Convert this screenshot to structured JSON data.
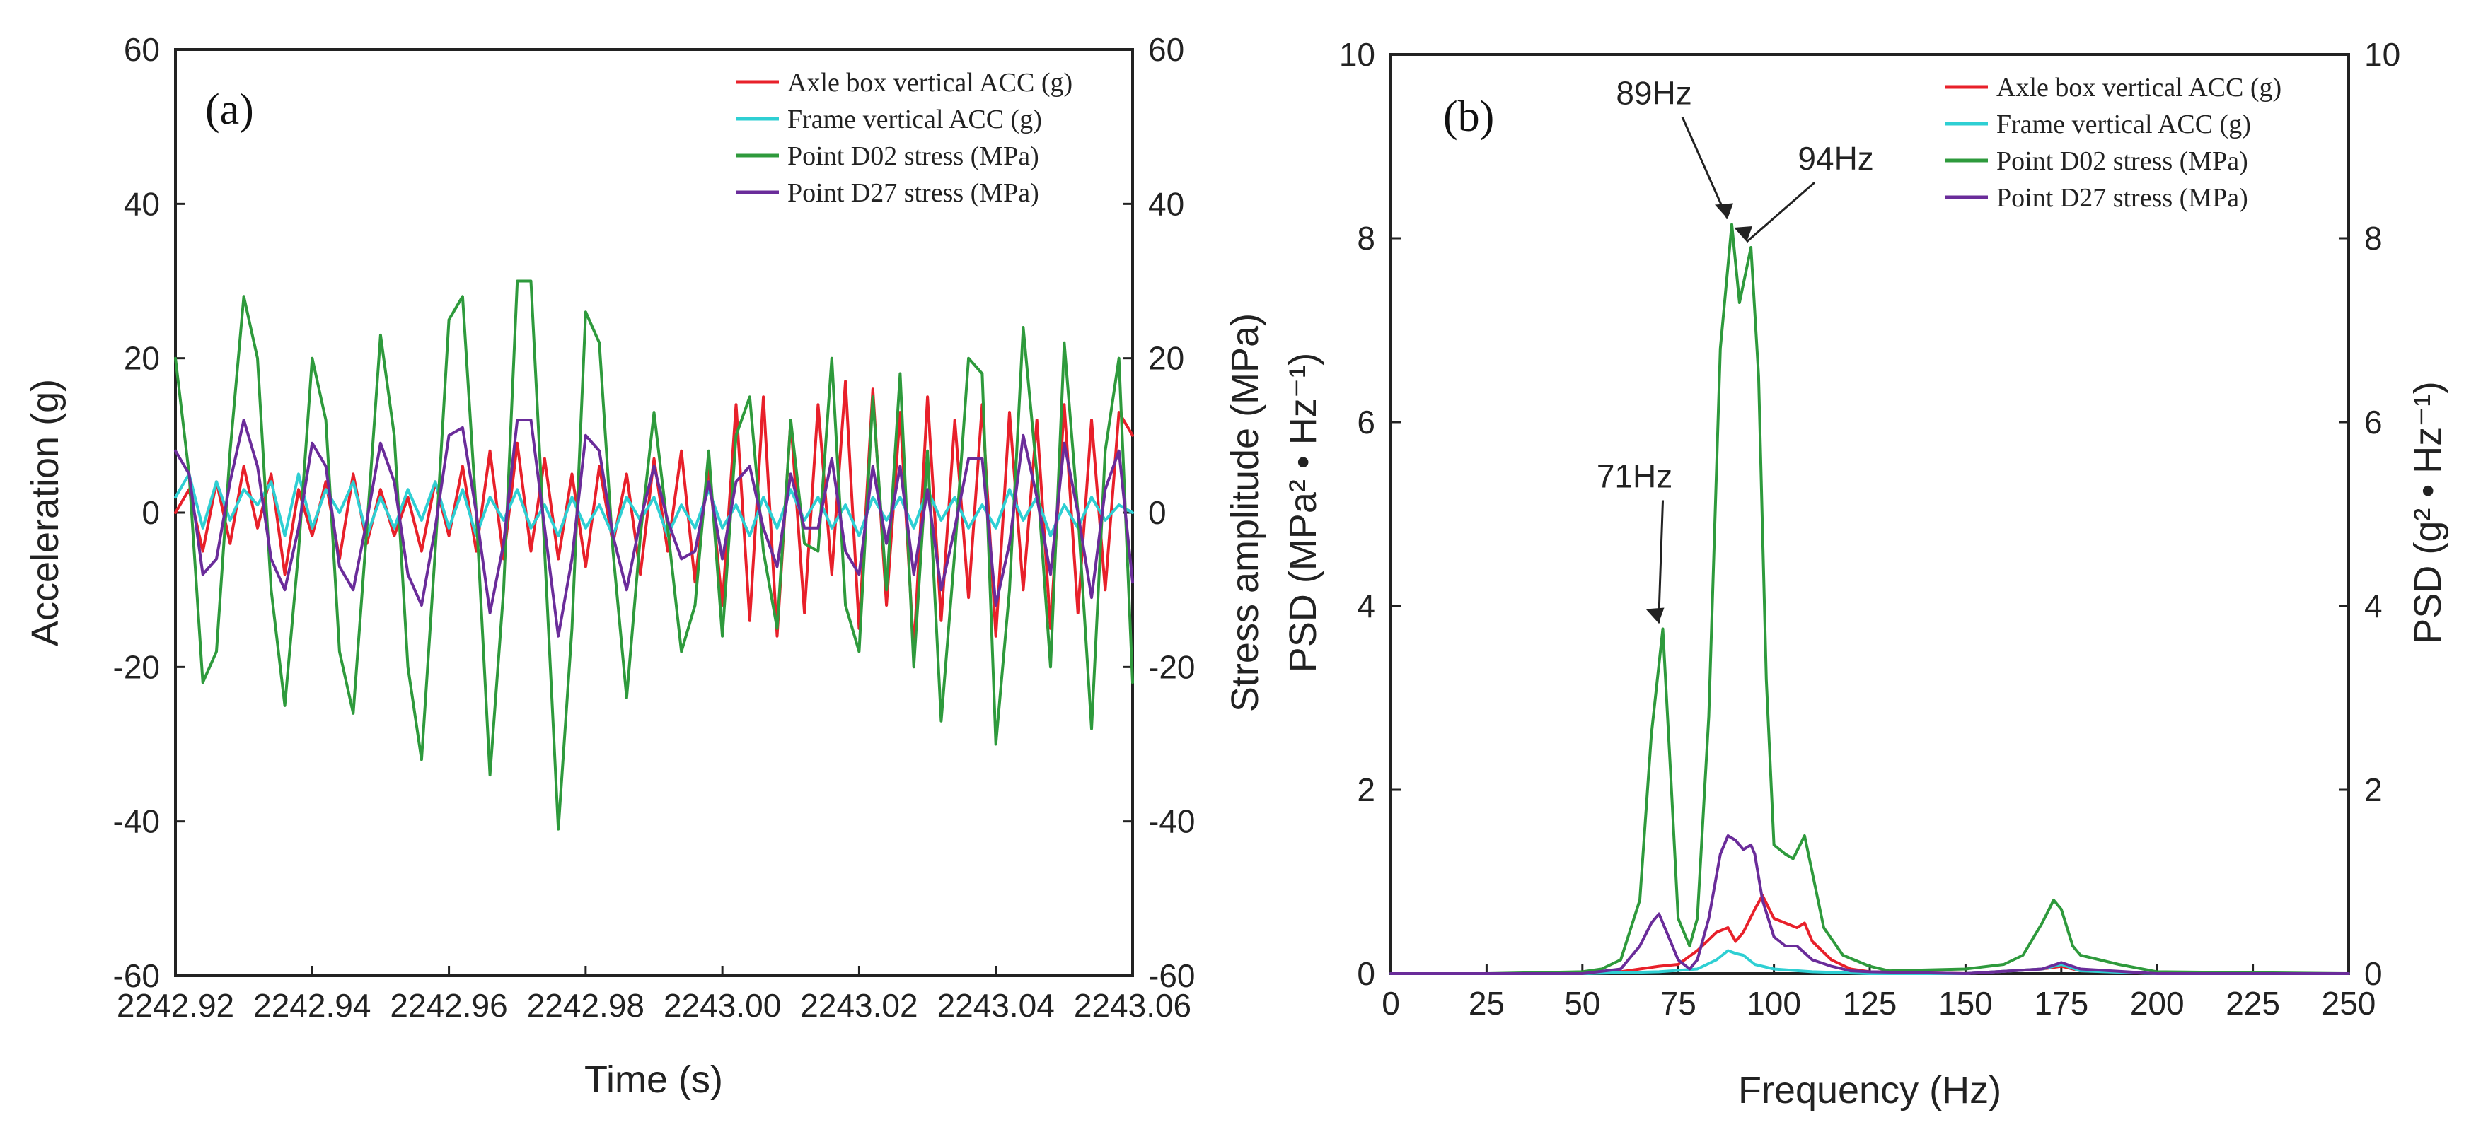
{
  "chart_data": [
    {
      "type": "line",
      "panel": "(a)",
      "xlabel": "Time (s)",
      "ylabel": "Acceleration (g)",
      "ylabel_right": "Stress amplitude (MPa)",
      "xlim": [
        2242.92,
        2243.06
      ],
      "ylim": [
        -60,
        60
      ],
      "ylim_right": [
        -60,
        60
      ],
      "x_ticks": [
        "2242.92",
        "2242.94",
        "2242.96",
        "2242.98",
        "2243.00",
        "2243.02",
        "2243.04",
        "2243.06"
      ],
      "x_tick_values": [
        2242.92,
        2242.94,
        2242.96,
        2242.98,
        2243.0,
        2243.02,
        2243.04,
        2243.06
      ],
      "y_ticks": [
        "60",
        "40",
        "20",
        "0",
        "-20",
        "-40",
        "-60"
      ],
      "y_tick_values": [
        60,
        40,
        20,
        0,
        -20,
        -40,
        -60
      ],
      "legend_position": "top-right",
      "series": [
        {
          "name": "Axle box vertical ACC (g)",
          "color": "#e8202a",
          "x": [
            2242.92,
            2242.922,
            2242.924,
            2242.926,
            2242.928,
            2242.93,
            2242.932,
            2242.934,
            2242.936,
            2242.938,
            2242.94,
            2242.942,
            2242.944,
            2242.946,
            2242.948,
            2242.95,
            2242.952,
            2242.954,
            2242.956,
            2242.958,
            2242.96,
            2242.962,
            2242.964,
            2242.966,
            2242.968,
            2242.97,
            2242.972,
            2242.974,
            2242.976,
            2242.978,
            2242.98,
            2242.982,
            2242.984,
            2242.986,
            2242.988,
            2242.99,
            2242.992,
            2242.994,
            2242.996,
            2242.998,
            2243.0,
            2243.002,
            2243.004,
            2243.006,
            2243.008,
            2243.01,
            2243.012,
            2243.014,
            2243.016,
            2243.018,
            2243.02,
            2243.022,
            2243.024,
            2243.026,
            2243.028,
            2243.03,
            2243.032,
            2243.034,
            2243.036,
            2243.038,
            2243.04,
            2243.042,
            2243.044,
            2243.046,
            2243.048,
            2243.05,
            2243.052,
            2243.054,
            2243.056,
            2243.058,
            2243.06
          ],
          "y": [
            0,
            3,
            -5,
            4,
            -4,
            6,
            -2,
            5,
            -8,
            3,
            -3,
            4,
            -6,
            5,
            -4,
            3,
            -3,
            2,
            -5,
            4,
            -3,
            6,
            -5,
            8,
            -6,
            9,
            -5,
            7,
            -6,
            5,
            -7,
            6,
            -4,
            5,
            -8,
            7,
            -5,
            8,
            -9,
            6,
            -12,
            14,
            -14,
            15,
            -16,
            12,
            -13,
            14,
            -8,
            17,
            -15,
            16,
            -12,
            13,
            -18,
            15,
            -14,
            12,
            -11,
            14,
            -16,
            13,
            -10,
            12,
            -15,
            14,
            -13,
            12,
            -10,
            13,
            10
          ]
        },
        {
          "name": "Frame vertical ACC (g)",
          "color": "#2ecfd3",
          "x": [
            2242.92,
            2242.922,
            2242.924,
            2242.926,
            2242.928,
            2242.93,
            2242.932,
            2242.934,
            2242.936,
            2242.938,
            2242.94,
            2242.942,
            2242.944,
            2242.946,
            2242.948,
            2242.95,
            2242.952,
            2242.954,
            2242.956,
            2242.958,
            2242.96,
            2242.962,
            2242.964,
            2242.966,
            2242.968,
            2242.97,
            2242.972,
            2242.974,
            2242.976,
            2242.978,
            2242.98,
            2242.982,
            2242.984,
            2242.986,
            2242.988,
            2242.99,
            2242.992,
            2242.994,
            2242.996,
            2242.998,
            2243.0,
            2243.002,
            2243.004,
            2243.006,
            2243.008,
            2243.01,
            2243.012,
            2243.014,
            2243.016,
            2243.018,
            2243.02,
            2243.022,
            2243.024,
            2243.026,
            2243.028,
            2243.03,
            2243.032,
            2243.034,
            2243.036,
            2243.038,
            2243.04,
            2243.042,
            2243.044,
            2243.046,
            2243.048,
            2243.05,
            2243.052,
            2243.054,
            2243.056,
            2243.058,
            2243.06
          ],
          "y": [
            2,
            5,
            -2,
            4,
            -1,
            3,
            1,
            4,
            -3,
            5,
            -2,
            3,
            0,
            4,
            -3,
            2,
            -2,
            3,
            -1,
            4,
            -2,
            3,
            -3,
            2,
            -1,
            3,
            -2,
            1,
            -3,
            2,
            -2,
            1,
            -3,
            2,
            -1,
            2,
            -3,
            1,
            -2,
            3,
            -2,
            1,
            -3,
            2,
            -2,
            3,
            -1,
            2,
            -2,
            1,
            -3,
            2,
            -1,
            2,
            -2,
            3,
            -1,
            2,
            -2,
            1,
            -2,
            3,
            -1,
            2,
            -3,
            1,
            -2,
            2,
            -1,
            1,
            0
          ]
        },
        {
          "name": "Point D02 stress (MPa)",
          "color": "#2e9a3c",
          "x": [
            2242.92,
            2242.922,
            2242.924,
            2242.926,
            2242.928,
            2242.93,
            2242.932,
            2242.934,
            2242.936,
            2242.938,
            2242.94,
            2242.942,
            2242.944,
            2242.946,
            2242.948,
            2242.95,
            2242.952,
            2242.954,
            2242.956,
            2242.958,
            2242.96,
            2242.962,
            2242.964,
            2242.966,
            2242.968,
            2242.97,
            2242.972,
            2242.974,
            2242.976,
            2242.978,
            2242.98,
            2242.982,
            2242.984,
            2242.986,
            2242.988,
            2242.99,
            2242.992,
            2242.994,
            2242.996,
            2242.998,
            2243.0,
            2243.002,
            2243.004,
            2243.006,
            2243.008,
            2243.01,
            2243.012,
            2243.014,
            2243.016,
            2243.018,
            2243.02,
            2243.022,
            2243.024,
            2243.026,
            2243.028,
            2243.03,
            2243.032,
            2243.034,
            2243.036,
            2243.038,
            2243.04,
            2243.042,
            2243.044,
            2243.046,
            2243.048,
            2243.05,
            2243.052,
            2243.054,
            2243.056,
            2243.058,
            2243.06
          ],
          "y": [
            20,
            5,
            -22,
            -18,
            8,
            28,
            20,
            -10,
            -25,
            -5,
            20,
            12,
            -18,
            -26,
            -2,
            23,
            10,
            -20,
            -32,
            -5,
            25,
            28,
            0,
            -34,
            -10,
            30,
            30,
            -5,
            -41,
            -15,
            26,
            22,
            -5,
            -24,
            -3,
            13,
            -2,
            -18,
            -12,
            8,
            -16,
            10,
            15,
            -5,
            -15,
            12,
            -4,
            -5,
            20,
            -12,
            -18,
            15,
            -10,
            18,
            -20,
            8,
            -27,
            -5,
            20,
            18,
            -30,
            -10,
            24,
            5,
            -20,
            22,
            0,
            -28,
            8,
            20,
            -22
          ]
        },
        {
          "name": "Point D27 stress (MPa)",
          "color": "#6a2c9a",
          "x": [
            2242.92,
            2242.922,
            2242.924,
            2242.926,
            2242.928,
            2242.93,
            2242.932,
            2242.934,
            2242.936,
            2242.938,
            2242.94,
            2242.942,
            2242.944,
            2242.946,
            2242.948,
            2242.95,
            2242.952,
            2242.954,
            2242.956,
            2242.958,
            2242.96,
            2242.962,
            2242.964,
            2242.966,
            2242.968,
            2242.97,
            2242.972,
            2242.974,
            2242.976,
            2242.978,
            2242.98,
            2242.982,
            2242.984,
            2242.986,
            2242.988,
            2242.99,
            2242.992,
            2242.994,
            2242.996,
            2242.998,
            2243.0,
            2243.002,
            2243.004,
            2243.006,
            2243.008,
            2243.01,
            2243.012,
            2243.014,
            2243.016,
            2243.018,
            2243.02,
            2243.022,
            2243.024,
            2243.026,
            2243.028,
            2243.03,
            2243.032,
            2243.034,
            2243.036,
            2243.038,
            2243.04,
            2243.042,
            2243.044,
            2243.046,
            2243.048,
            2243.05,
            2243.052,
            2243.054,
            2243.056,
            2243.058,
            2243.06
          ],
          "y": [
            8,
            5,
            -8,
            -6,
            4,
            12,
            6,
            -6,
            -10,
            -2,
            9,
            6,
            -7,
            -10,
            -1,
            9,
            4,
            -8,
            -12,
            -2,
            10,
            11,
            0,
            -13,
            -4,
            12,
            12,
            -2,
            -16,
            -6,
            10,
            8,
            -3,
            -10,
            -1,
            6,
            -1,
            -6,
            -5,
            4,
            -6,
            4,
            6,
            -2,
            -7,
            5,
            -2,
            -2,
            7,
            -5,
            -8,
            6,
            -4,
            6,
            -8,
            3,
            -10,
            -2,
            7,
            7,
            -12,
            -4,
            10,
            2,
            -8,
            9,
            0,
            -11,
            3,
            8,
            -9
          ]
        }
      ]
    },
    {
      "type": "line",
      "panel": "(b)",
      "xlabel": "Frequency (Hz)",
      "ylabel": "PSD (MPa² • Hz⁻¹)",
      "ylabel_right": "PSD (g² • Hz⁻¹)",
      "xlim": [
        0,
        250
      ],
      "ylim": [
        0,
        10
      ],
      "ylim_right": [
        0,
        10
      ],
      "x_ticks": [
        "0",
        "25",
        "50",
        "75",
        "100",
        "125",
        "150",
        "175",
        "200",
        "225",
        "250"
      ],
      "x_tick_values": [
        0,
        25,
        50,
        75,
        100,
        125,
        150,
        175,
        200,
        225,
        250
      ],
      "y_ticks": [
        "10",
        "8",
        "6",
        "4",
        "2",
        "0"
      ],
      "y_tick_values": [
        10,
        8,
        6,
        4,
        2,
        0
      ],
      "legend_position": "top-right",
      "annotations": [
        {
          "text": "89Hz",
          "x": 89,
          "y": 8.15
        },
        {
          "text": "94Hz",
          "x": 94,
          "y": 7.9
        },
        {
          "text": "71Hz",
          "x": 71,
          "y": 3.75
        }
      ],
      "series": [
        {
          "name": "Axle box vertical ACC (g)",
          "color": "#e8202a",
          "x": [
            0,
            25,
            50,
            60,
            70,
            75,
            80,
            85,
            88,
            90,
            92,
            95,
            97,
            100,
            103,
            106,
            108,
            110,
            115,
            120,
            125,
            150,
            170,
            175,
            180,
            200,
            250
          ],
          "y": [
            0,
            0,
            0,
            0.02,
            0.08,
            0.1,
            0.25,
            0.45,
            0.5,
            0.35,
            0.45,
            0.7,
            0.85,
            0.6,
            0.55,
            0.5,
            0.55,
            0.35,
            0.15,
            0.05,
            0.02,
            0,
            0.05,
            0.08,
            0.03,
            0,
            0
          ]
        },
        {
          "name": "Frame vertical ACC (g)",
          "color": "#2ecfd3",
          "x": [
            0,
            25,
            50,
            70,
            80,
            85,
            88,
            90,
            92,
            95,
            100,
            110,
            125,
            150,
            170,
            175,
            180,
            200,
            250
          ],
          "y": [
            0,
            0,
            0,
            0.02,
            0.05,
            0.15,
            0.25,
            0.22,
            0.2,
            0.1,
            0.05,
            0.02,
            0,
            0,
            0.05,
            0.1,
            0.03,
            0,
            0
          ]
        },
        {
          "name": "Point D02 stress (MPa)",
          "color": "#2e9a3c",
          "x": [
            0,
            25,
            50,
            55,
            60,
            65,
            68,
            71,
            73,
            75,
            78,
            80,
            83,
            86,
            89,
            91,
            94,
            96,
            98,
            100,
            103,
            105,
            108,
            110,
            113,
            118,
            125,
            130,
            150,
            160,
            165,
            170,
            173,
            175,
            178,
            180,
            185,
            190,
            200,
            250
          ],
          "y": [
            0,
            0,
            0.02,
            0.05,
            0.15,
            0.8,
            2.6,
            3.75,
            2.2,
            0.6,
            0.3,
            0.6,
            2.8,
            6.8,
            8.15,
            7.3,
            7.9,
            6.5,
            3.2,
            1.4,
            1.3,
            1.25,
            1.5,
            1.1,
            0.5,
            0.2,
            0.08,
            0.03,
            0.05,
            0.1,
            0.2,
            0.55,
            0.8,
            0.7,
            0.3,
            0.2,
            0.15,
            0.1,
            0.02,
            0
          ]
        },
        {
          "name": "Point D27 stress (MPa)",
          "color": "#6a2c9a",
          "x": [
            0,
            25,
            50,
            60,
            65,
            68,
            70,
            72,
            75,
            78,
            80,
            83,
            86,
            88,
            90,
            92,
            94,
            95,
            97,
            100,
            103,
            106,
            110,
            115,
            120,
            125,
            150,
            170,
            175,
            180,
            200,
            250
          ],
          "y": [
            0,
            0,
            0,
            0.05,
            0.3,
            0.55,
            0.65,
            0.45,
            0.15,
            0.05,
            0.15,
            0.6,
            1.3,
            1.5,
            1.45,
            1.35,
            1.4,
            1.3,
            0.8,
            0.4,
            0.3,
            0.3,
            0.15,
            0.08,
            0.03,
            0.02,
            0,
            0.05,
            0.12,
            0.05,
            0,
            0
          ]
        }
      ]
    }
  ]
}
